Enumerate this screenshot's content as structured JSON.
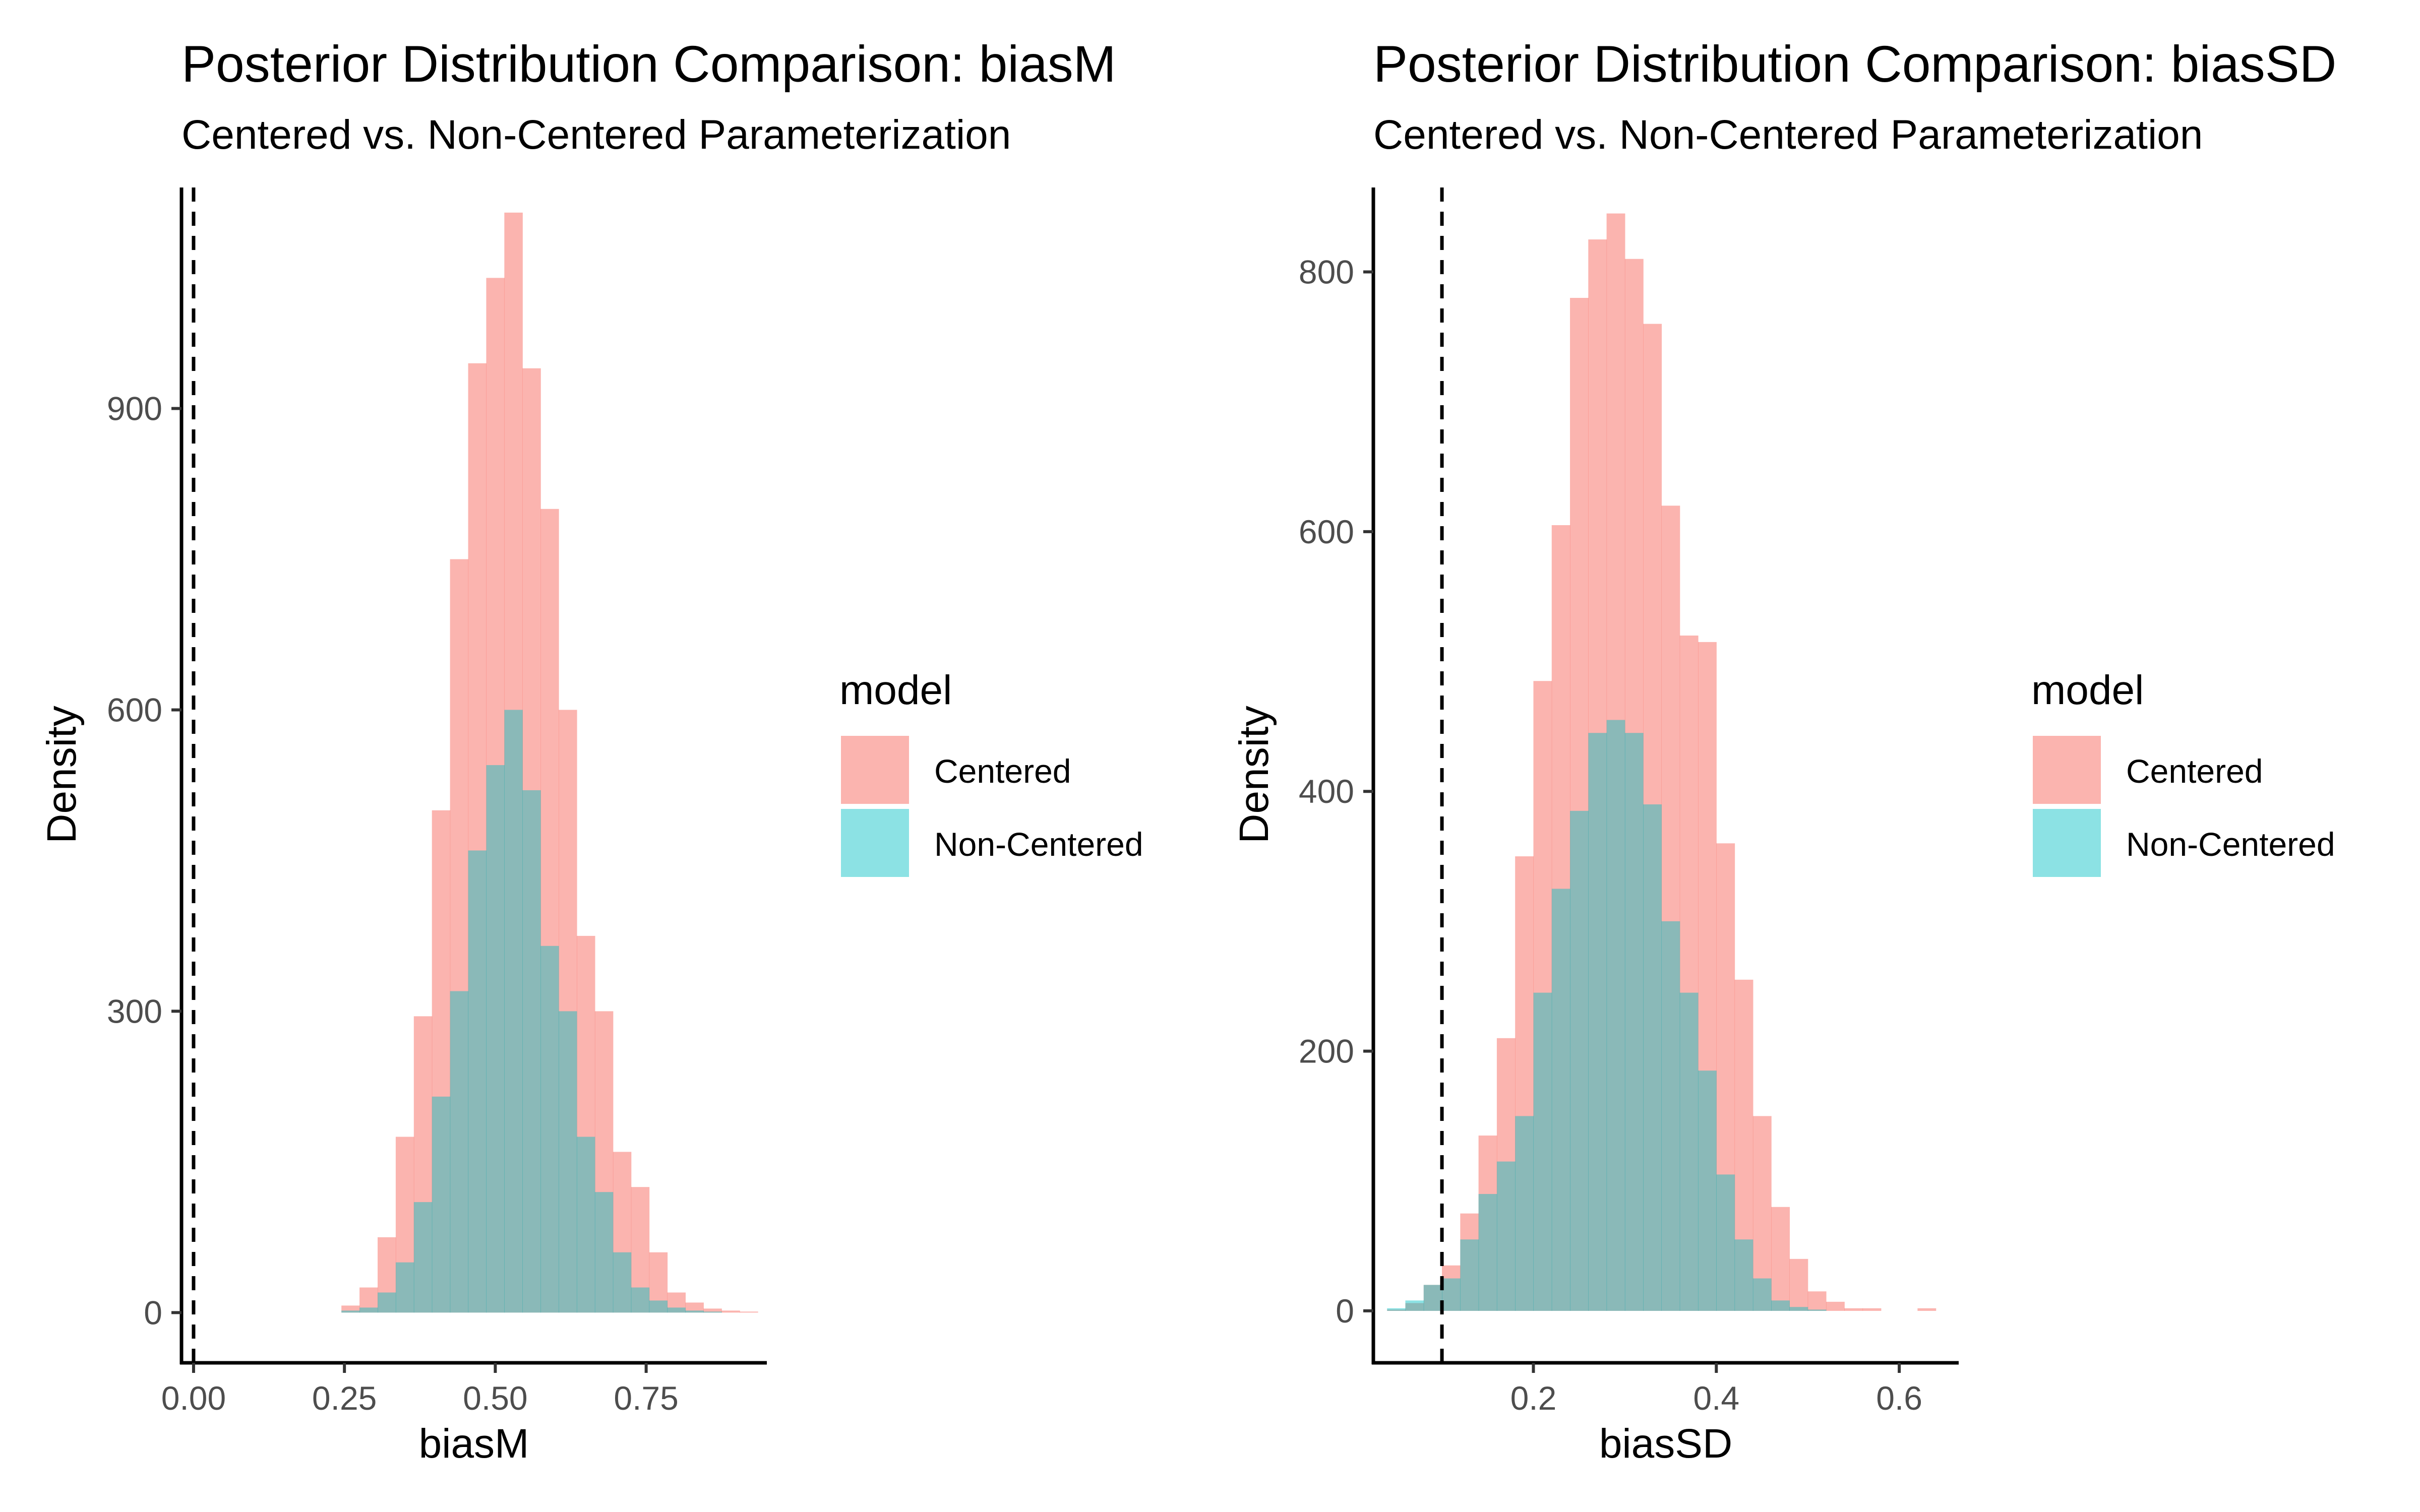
{
  "chart_data": [
    {
      "type": "bar",
      "title": "Posterior Distribution Comparison: biasM",
      "subtitle": "Centered vs. Non-Centered Parameterization",
      "xlabel": "biasM",
      "ylabel": "Density",
      "xlim": [
        -0.02,
        0.95
      ],
      "ylim": [
        -50,
        1120
      ],
      "x_ticks": [
        "0.00",
        "0.25",
        "0.50",
        "0.75"
      ],
      "y_ticks": [
        "0",
        "300",
        "600",
        "900"
      ],
      "reference_line": {
        "x": 0.0,
        "style": "dashed"
      },
      "legend": {
        "title": "model",
        "position": "right",
        "entries": [
          "Centered",
          "Non-Centered"
        ]
      },
      "grid": false,
      "bin_width": 0.03,
      "series": [
        {
          "name": "Centered",
          "color": "#F8766D",
          "x": [
            0.26,
            0.29,
            0.32,
            0.35,
            0.38,
            0.41,
            0.44,
            0.47,
            0.5,
            0.53,
            0.56,
            0.59,
            0.62,
            0.65,
            0.68,
            0.71,
            0.74,
            0.77,
            0.8,
            0.83,
            0.86,
            0.89,
            0.92
          ],
          "values": [
            7,
            25,
            75,
            175,
            295,
            500,
            750,
            945,
            1030,
            1095,
            940,
            800,
            600,
            375,
            300,
            160,
            125,
            60,
            20,
            10,
            4,
            2,
            1
          ]
        },
        {
          "name": "Non-Centered",
          "color": "#00BFC4",
          "x": [
            0.26,
            0.29,
            0.32,
            0.35,
            0.38,
            0.41,
            0.44,
            0.47,
            0.5,
            0.53,
            0.56,
            0.59,
            0.62,
            0.65,
            0.68,
            0.71,
            0.74,
            0.77,
            0.8,
            0.83,
            0.86,
            0.89,
            0.92
          ],
          "values": [
            2,
            5,
            20,
            50,
            110,
            215,
            320,
            460,
            545,
            600,
            520,
            365,
            300,
            175,
            120,
            60,
            25,
            12,
            5,
            2,
            1,
            0,
            0
          ]
        }
      ]
    },
    {
      "type": "bar",
      "title": "Posterior Distribution Comparison: biasSD",
      "subtitle": "Centered vs. Non-Centered Parameterization",
      "xlabel": "biasSD",
      "ylabel": "Density",
      "xlim": [
        0.025,
        0.665
      ],
      "ylim": [
        -40,
        865
      ],
      "x_ticks": [
        "0.2",
        "0.4",
        "0.6"
      ],
      "y_ticks": [
        "0",
        "200",
        "400",
        "600",
        "800"
      ],
      "reference_line": {
        "x": 0.1,
        "style": "dashed"
      },
      "legend": {
        "title": "model",
        "position": "right",
        "entries": [
          "Centered",
          "Non-Centered"
        ]
      },
      "grid": false,
      "bin_width": 0.02,
      "series": [
        {
          "name": "Centered",
          "color": "#F8766D",
          "x": [
            0.05,
            0.07,
            0.09,
            0.11,
            0.13,
            0.15,
            0.17,
            0.19,
            0.21,
            0.23,
            0.25,
            0.27,
            0.29,
            0.31,
            0.33,
            0.35,
            0.37,
            0.39,
            0.41,
            0.43,
            0.45,
            0.47,
            0.49,
            0.51,
            0.53,
            0.55,
            0.57,
            0.59,
            0.61,
            0.63
          ],
          "values": [
            1,
            6,
            20,
            35,
            75,
            135,
            210,
            350,
            485,
            605,
            780,
            825,
            845,
            810,
            760,
            620,
            520,
            515,
            360,
            255,
            150,
            80,
            40,
            15,
            7,
            2,
            2,
            0,
            0,
            2
          ]
        },
        {
          "name": "Non-Centered",
          "color": "#00BFC4",
          "x": [
            0.05,
            0.07,
            0.09,
            0.11,
            0.13,
            0.15,
            0.17,
            0.19,
            0.21,
            0.23,
            0.25,
            0.27,
            0.29,
            0.31,
            0.33,
            0.35,
            0.37,
            0.39,
            0.41,
            0.43,
            0.45,
            0.47,
            0.49,
            0.51,
            0.53,
            0.55,
            0.57,
            0.59,
            0.61,
            0.63
          ],
          "values": [
            2,
            8,
            20,
            25,
            55,
            90,
            115,
            150,
            245,
            325,
            385,
            445,
            455,
            445,
            390,
            300,
            245,
            185,
            105,
            55,
            25,
            8,
            3,
            1,
            0,
            0,
            0,
            0,
            0,
            0
          ]
        }
      ]
    }
  ]
}
